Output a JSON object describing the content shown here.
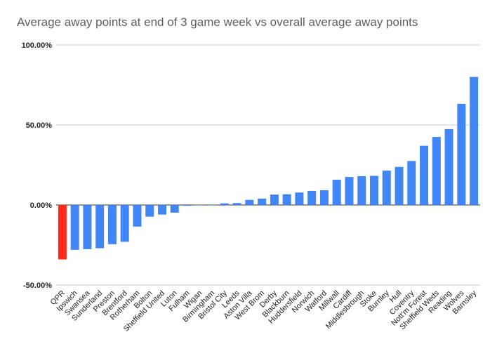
{
  "chart_data": {
    "type": "bar",
    "title": "Average away points at end of 3 game week vs overall average away points",
    "xlabel": "",
    "ylabel": "",
    "ylim": [
      -50,
      100
    ],
    "yticks": [
      -50,
      0,
      50,
      100
    ],
    "ytick_labels": [
      "-50.00%",
      "0.00%",
      "50.00%",
      "100.00%"
    ],
    "grid": true,
    "colors": {
      "default": "#4285f4",
      "highlight": "#ff2a1a",
      "grid": "#cccccc"
    },
    "highlight_category": "QPR",
    "categories": [
      "QPR",
      "Ipswich",
      "Swansea",
      "Sunderland",
      "Preston",
      "Brentford",
      "Rotherham",
      "Bolton",
      "Sheffield United",
      "Luton",
      "Fulham",
      "Wigan",
      "Birmingham",
      "Bristol City",
      "Leeds",
      "Aston Villa",
      "West Brom",
      "Derby",
      "Blackburn",
      "Huddersfield",
      "Norwich",
      "Watford",
      "Millwall",
      "Cardiff",
      "Middlesbrough",
      "Stoke",
      "Burnley",
      "Hull",
      "Coventry",
      "Nott'm Forest",
      "Sheffield Weds",
      "Reading",
      "Wolves",
      "Barnsley"
    ],
    "values": [
      -34,
      -28,
      -27.6,
      -27,
      -24.5,
      -23,
      -13.5,
      -7.3,
      -6,
      -4.8,
      -0.5,
      -0.2,
      0,
      1,
      1.2,
      3.2,
      4,
      6.5,
      6.7,
      7.8,
      8.8,
      9.2,
      15.8,
      17.5,
      18,
      18.2,
      21.5,
      23.8,
      27.5,
      37,
      42.5,
      47.4,
      63.2,
      80
    ]
  }
}
